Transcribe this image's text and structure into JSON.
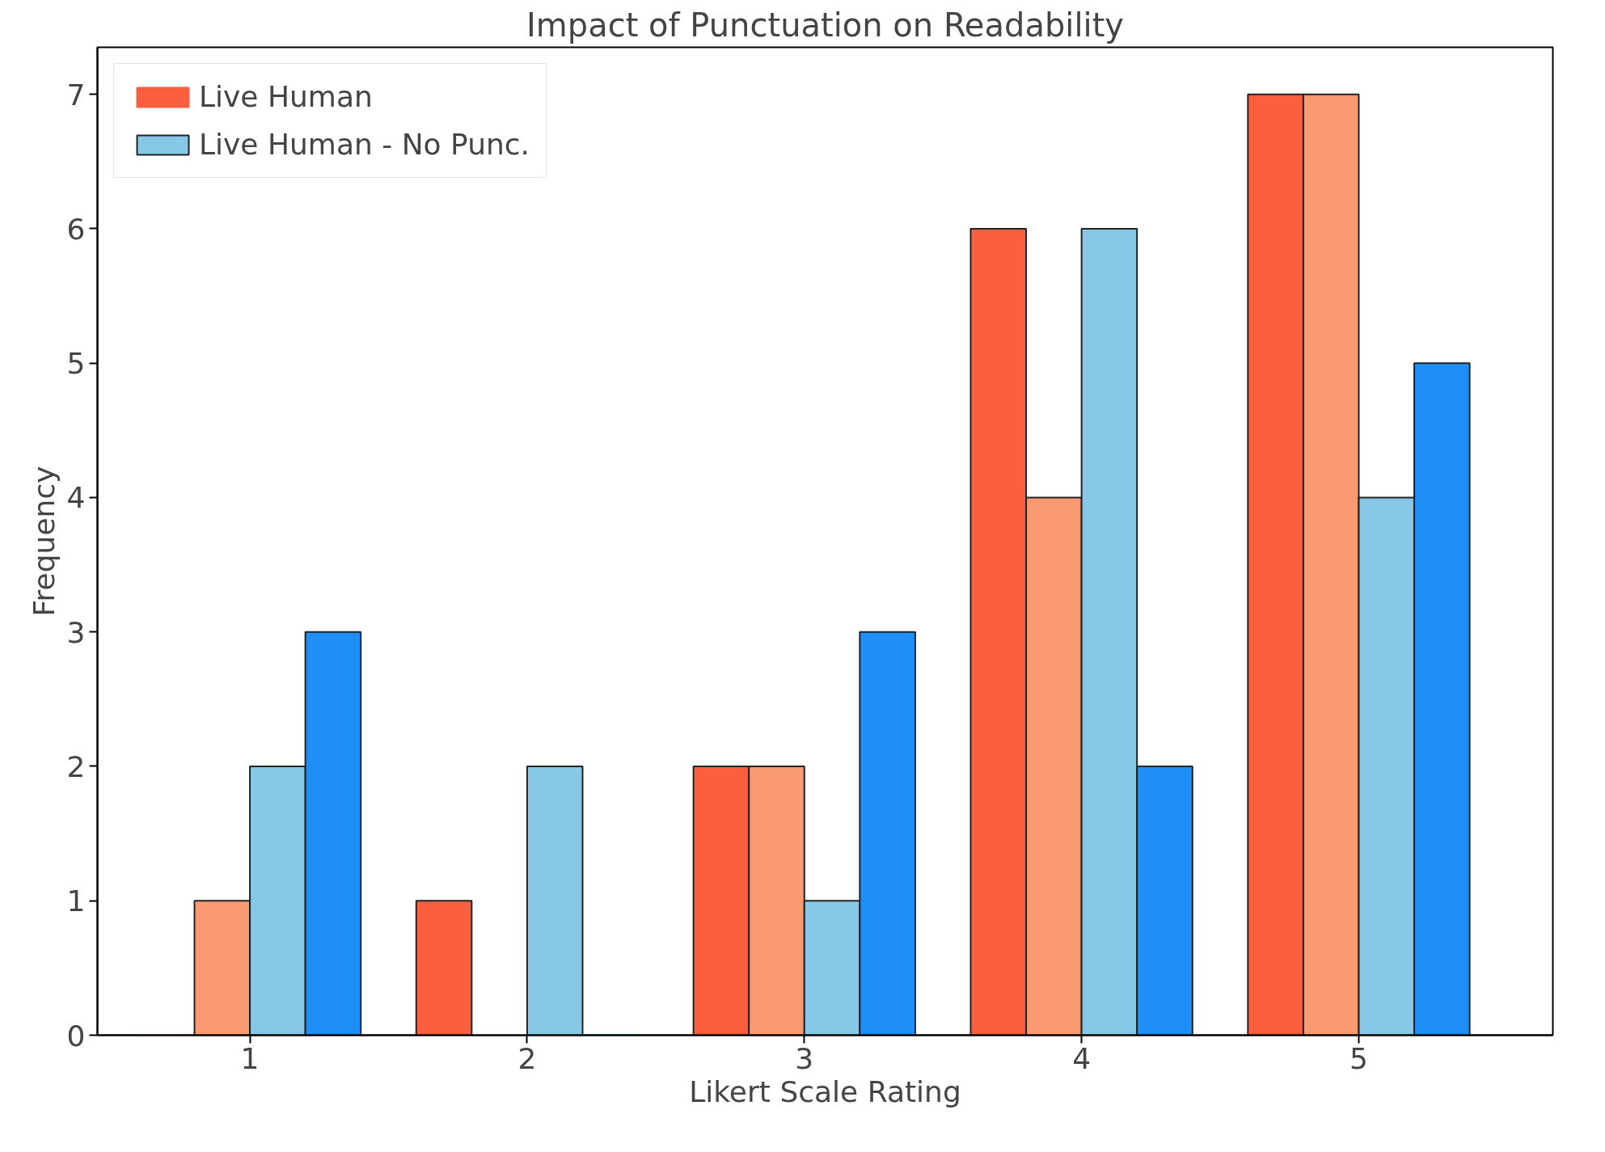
{
  "chart_data": {
    "type": "bar",
    "title": "Impact of Punctuation on Readability",
    "xlabel": "Likert Scale Rating",
    "ylabel": "Frequency",
    "categories": [
      "1",
      "2",
      "3",
      "4",
      "5"
    ],
    "series": [
      {
        "name": "Live Human",
        "color": "#fa6040",
        "values": [
          0,
          1,
          2,
          6,
          7
        ]
      },
      {
        "color": "#fa9a72",
        "values": [
          1,
          0,
          2,
          4,
          7
        ]
      },
      {
        "name": "Live Human - No Punc.",
        "color": "#86c8e6",
        "values": [
          2,
          2,
          1,
          6,
          4
        ]
      },
      {
        "color": "#1f8ff8",
        "values": [
          3,
          0,
          3,
          2,
          5
        ]
      }
    ],
    "ylim": [
      0,
      7.35
    ],
    "yticks": [
      0,
      1,
      2,
      3,
      4,
      5,
      6,
      7
    ],
    "grid": false,
    "legend": "top left"
  }
}
